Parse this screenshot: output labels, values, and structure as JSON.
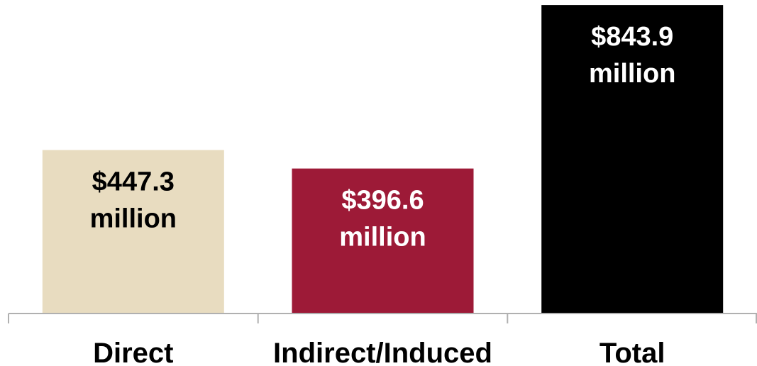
{
  "chart_data": {
    "type": "bar",
    "categories": [
      "Direct",
      "Indirect/Induced",
      "Total"
    ],
    "values": [
      447.3,
      396.6,
      843.9
    ],
    "data_labels": [
      [
        "$447.3",
        "million"
      ],
      [
        "$396.6",
        "million"
      ],
      [
        "$843.9",
        "million"
      ]
    ],
    "colors": [
      "#E8DCC0",
      "#9D1A37",
      "#000000"
    ],
    "label_colors": [
      "#000000",
      "#FFFFFF",
      "#FFFFFF"
    ],
    "ylim": [
      0,
      900
    ],
    "grid": false,
    "legend": "none",
    "axis_color": "#B0B0B0"
  }
}
